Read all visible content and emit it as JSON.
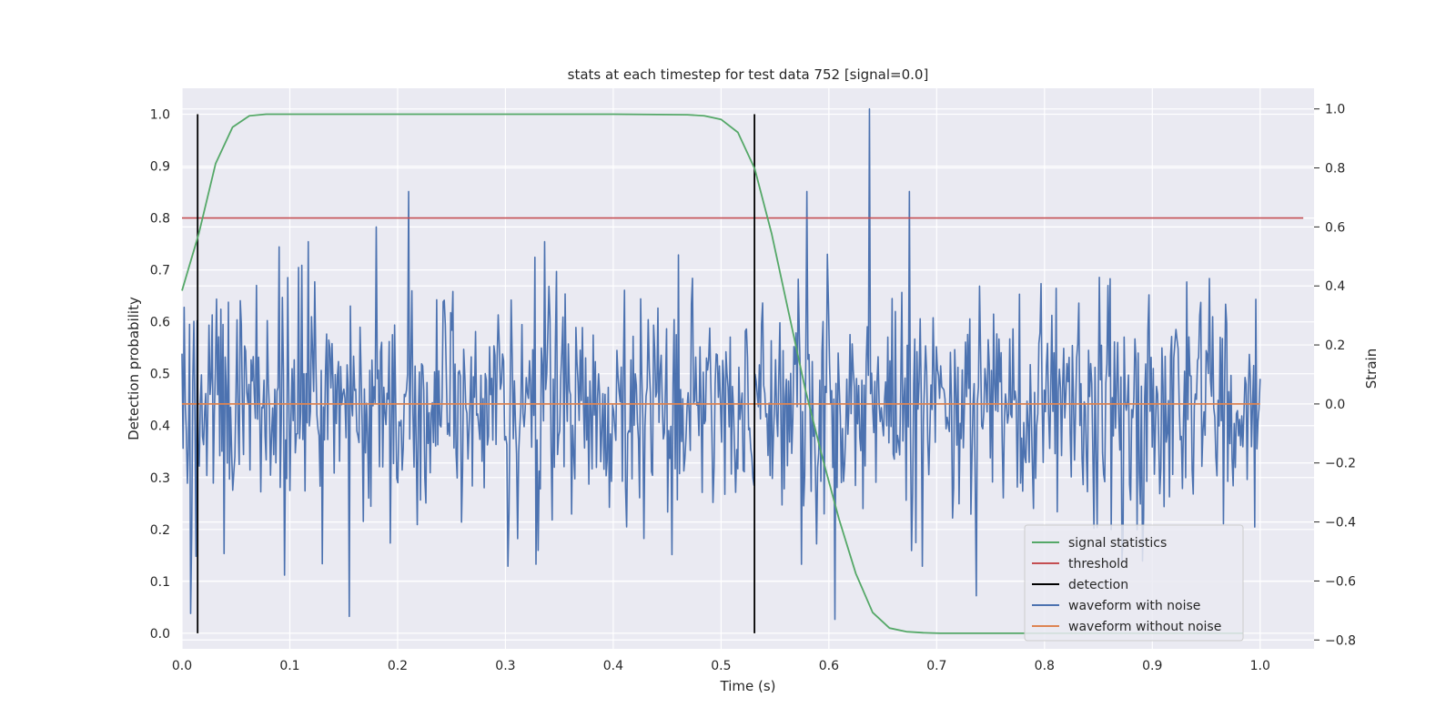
{
  "chart_data": {
    "type": "line",
    "title": "stats at each timestep for test data 752 [signal=0.0]",
    "xlabel": "Time (s)",
    "ylabel": "Detection probability",
    "y2label": "Strain",
    "xlim": [
      0.0,
      1.05
    ],
    "ylim": [
      -0.03,
      1.05
    ],
    "y2lim": [
      -0.83,
      1.07
    ],
    "xticks": [
      "0.0",
      "0.1",
      "0.2",
      "0.3",
      "0.4",
      "0.5",
      "0.6",
      "0.7",
      "0.8",
      "0.9",
      "1.0"
    ],
    "yticks": [
      "0.0",
      "0.1",
      "0.2",
      "0.3",
      "0.4",
      "0.5",
      "0.6",
      "0.7",
      "0.8",
      "0.9",
      "1.0"
    ],
    "y2ticks": [
      "−0.8",
      "−0.6",
      "−0.4",
      "−0.2",
      "0.0",
      "0.2",
      "0.4",
      "0.6",
      "0.8",
      "1.0"
    ],
    "grid": true,
    "legend_position": "lower-right",
    "series": [
      {
        "name": "signal statistics",
        "axis": "left",
        "color": "#55a868",
        "x": [
          0.0,
          0.0156,
          0.0312,
          0.0469,
          0.0625,
          0.0781,
          0.1,
          0.2,
          0.3,
          0.4,
          0.4688,
          0.4844,
          0.5,
          0.5156,
          0.5312,
          0.5469,
          0.5625,
          0.5781,
          0.5938,
          0.6094,
          0.625,
          0.6406,
          0.6562,
          0.6719,
          0.6875,
          0.7031,
          0.75,
          0.8,
          0.85,
          0.9,
          0.95,
          0.9844
        ],
        "y": [
          0.66,
          0.77,
          0.905,
          0.975,
          0.997,
          1.0,
          1.0,
          1.0,
          1.0,
          1.0,
          0.999,
          0.997,
          0.99,
          0.965,
          0.895,
          0.77,
          0.62,
          0.47,
          0.34,
          0.22,
          0.115,
          0.04,
          0.01,
          0.003,
          0.001,
          0.0,
          0.0,
          0.0,
          0.0,
          0.0,
          0.0,
          0.0
        ]
      },
      {
        "name": "threshold",
        "axis": "left",
        "color": "#c44e52",
        "x": [
          0.0,
          1.04
        ],
        "y": [
          0.8,
          0.8
        ]
      },
      {
        "name": "detection",
        "axis": "left",
        "color": "#000000",
        "x": [
          0.0145,
          0.531
        ],
        "y": [
          1.0,
          1.0
        ]
      },
      {
        "name": "waveform with noise",
        "axis": "right",
        "color": "#4c72b0",
        "x_start": 0.0,
        "x_end": 1.0,
        "noise_std": 0.2,
        "extremes": [
          {
            "x": 0.638,
            "y": 1.0
          },
          {
            "x": 0.606,
            "y": -0.73
          },
          {
            "x": 0.155,
            "y": -0.72
          },
          {
            "x": 0.008,
            "y": -0.71
          },
          {
            "x": 0.21,
            "y": 0.72
          },
          {
            "x": 0.18,
            "y": 0.6
          },
          {
            "x": 0.675,
            "y": 0.72
          },
          {
            "x": 0.58,
            "y": 0.72
          },
          {
            "x": 0.737,
            "y": -0.65
          },
          {
            "x": 0.095,
            "y": -0.58
          }
        ]
      },
      {
        "name": "waveform without noise",
        "axis": "right",
        "color": "#dd8452",
        "x": [
          0.0,
          1.0
        ],
        "y": [
          0.0,
          0.0
        ]
      }
    ]
  }
}
